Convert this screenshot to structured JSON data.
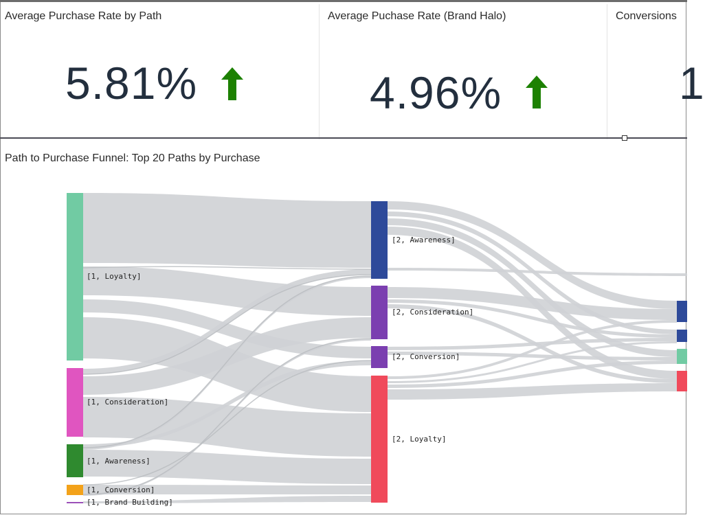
{
  "kpis": [
    {
      "title": "Average Purchase Rate by Path",
      "value": "5.81%",
      "trend": "up"
    },
    {
      "title": "Average Puchase Rate (Brand Halo)",
      "value": "4.96%",
      "trend": "up"
    },
    {
      "title": "Conversions",
      "value": "1"
    }
  ],
  "colors": {
    "trend_up": "#1d8102",
    "value_text": "#232f3e",
    "link": "#cfd2d5",
    "awareness": "#2e4a9a",
    "consideration": "#7b3fb0",
    "loyalty": "#f04a5b",
    "stage1_loyalty": "#71cba3",
    "stage1_consideration": "#e055c0",
    "stage1_awareness": "#2f8a2f",
    "stage1_conversion": "#f3a21a",
    "stage1_brand_building": "#9b4fb8"
  },
  "sankey": {
    "title": "Path to Purchase Funnel: Top 20 Paths by Purchase",
    "stage1": [
      {
        "label": "[1, Loyalty]"
      },
      {
        "label": "[1, Consideration]"
      },
      {
        "label": "[1, Awareness]"
      },
      {
        "label": "[1, Conversion]"
      },
      {
        "label": "[1, Brand Building]"
      }
    ],
    "stage2": [
      {
        "label": "[2, Awareness]"
      },
      {
        "label": "[2, Consideration]"
      },
      {
        "label": "[2, Conversion]"
      },
      {
        "label": "[2, Loyalty]"
      }
    ]
  }
}
